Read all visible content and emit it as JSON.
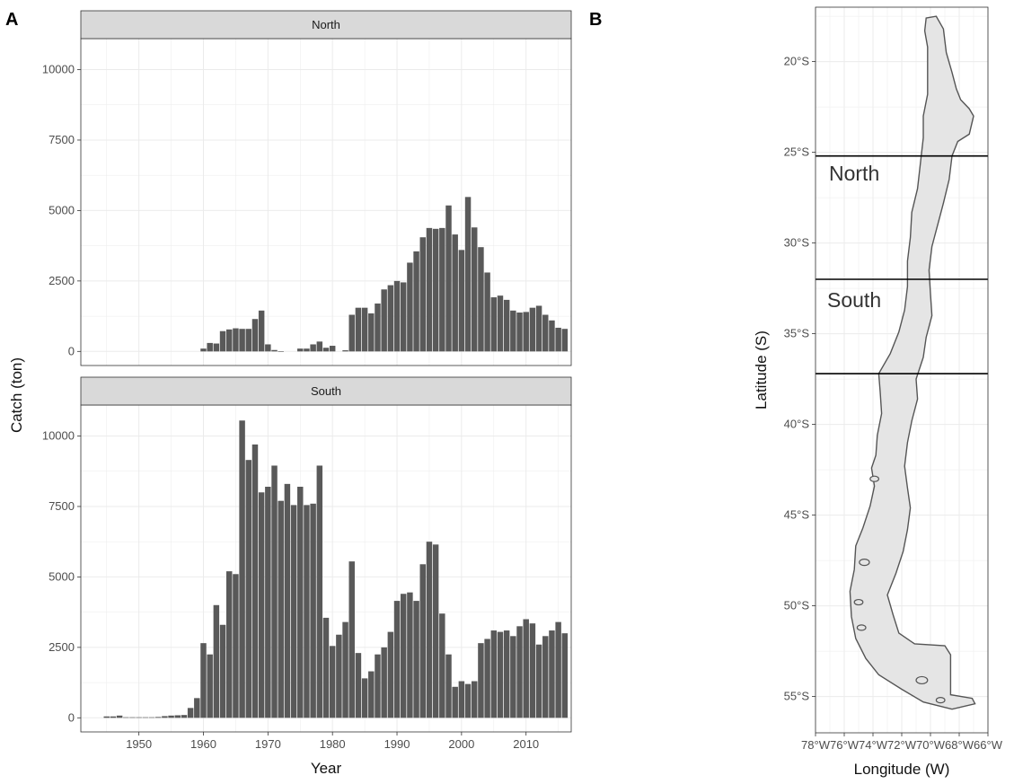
{
  "panels": {
    "a_label": "A",
    "b_label": "B"
  },
  "chart_data": [
    {
      "type": "bar",
      "facet_strips": [
        "North",
        "South"
      ],
      "xlabel": "Year",
      "ylabel": "Catch (ton)",
      "xlim": [
        1941,
        2017
      ],
      "ylim": [
        -500,
        11100
      ],
      "xticks": [
        1950,
        1960,
        1970,
        1980,
        1990,
        2000,
        2010
      ],
      "yticks": [
        0,
        2500,
        5000,
        7500,
        10000
      ],
      "grid": true,
      "bar_color": "#595959",
      "series": [
        {
          "name": "North",
          "x": [
            1960,
            1961,
            1962,
            1963,
            1964,
            1965,
            1966,
            1967,
            1968,
            1969,
            1970,
            1971,
            1972,
            1975,
            1976,
            1977,
            1978,
            1979,
            1980,
            1982,
            1983,
            1984,
            1985,
            1986,
            1987,
            1988,
            1989,
            1990,
            1991,
            1992,
            1993,
            1994,
            1995,
            1996,
            1997,
            1998,
            1999,
            2000,
            2001,
            2002,
            2003,
            2004,
            2005,
            2006,
            2007,
            2008,
            2009,
            2010,
            2011,
            2012,
            2013,
            2014,
            2015,
            2016
          ],
          "values": [
            100,
            300,
            280,
            720,
            780,
            820,
            800,
            800,
            1150,
            1450,
            250,
            50,
            0,
            100,
            100,
            250,
            350,
            130,
            200,
            40,
            1300,
            1550,
            1550,
            1350,
            1700,
            2200,
            2350,
            2500,
            2450,
            3150,
            3550,
            4050,
            4380,
            4350,
            4380,
            5180,
            4150,
            3600,
            5480,
            4400,
            3700,
            2800,
            1920,
            1980,
            1830,
            1450,
            1380,
            1400,
            1550,
            1620,
            1300,
            1100,
            840,
            800
          ]
        },
        {
          "name": "South",
          "x": [
            1945,
            1946,
            1947,
            1948,
            1949,
            1950,
            1951,
            1952,
            1953,
            1954,
            1955,
            1956,
            1957,
            1958,
            1959,
            1960,
            1961,
            1962,
            1963,
            1964,
            1965,
            1966,
            1967,
            1968,
            1969,
            1970,
            1971,
            1972,
            1973,
            1974,
            1975,
            1976,
            1977,
            1978,
            1979,
            1980,
            1981,
            1982,
            1983,
            1984,
            1985,
            1986,
            1987,
            1988,
            1989,
            1990,
            1991,
            1992,
            1993,
            1994,
            1995,
            1996,
            1997,
            1998,
            1999,
            2000,
            2001,
            2002,
            2003,
            2004,
            2005,
            2006,
            2007,
            2008,
            2009,
            2010,
            2011,
            2012,
            2013,
            2014,
            2015,
            2016
          ],
          "values": [
            50,
            50,
            80,
            20,
            20,
            20,
            20,
            20,
            30,
            60,
            80,
            90,
            100,
            350,
            700,
            2650,
            2250,
            4000,
            3300,
            5200,
            5100,
            10550,
            9150,
            9700,
            8000,
            8200,
            8950,
            7700,
            8300,
            7550,
            8200,
            7550,
            7600,
            8950,
            3550,
            2550,
            2950,
            3400,
            5550,
            2300,
            1400,
            1650,
            2250,
            2500,
            3050,
            4150,
            4400,
            4450,
            4150,
            5450,
            6250,
            6150,
            3700,
            2250,
            1100,
            1300,
            1200,
            1300,
            2650,
            2800,
            3100,
            3050,
            3100,
            2900,
            3250,
            3500,
            3350,
            2600,
            2900,
            3100,
            3400,
            3000
          ]
        }
      ]
    },
    {
      "type": "map",
      "xlabel": "Longitude (W)",
      "ylabel": "Latitude (S)",
      "xlim": [
        -78,
        -66
      ],
      "ylim": [
        -57,
        -17
      ],
      "xticks": [
        "78°W",
        "76°W",
        "74°W",
        "72°W",
        "70°W",
        "68°W",
        "66°W"
      ],
      "yticks": [
        "20°S",
        "25°S",
        "30°S",
        "35°S",
        "40°S",
        "45°S",
        "50°S",
        "55°S"
      ],
      "ytick_values": [
        -20,
        -25,
        -30,
        -35,
        -40,
        -45,
        -50,
        -55
      ],
      "xtick_values": [
        -78,
        -76,
        -74,
        -72,
        -70,
        -68,
        -66
      ],
      "boundaries_lat": [
        -25.2,
        -32.0,
        -37.2
      ],
      "regions": [
        "North",
        "South"
      ],
      "land_color": "#e5e5e5",
      "outline_color": "#555555"
    }
  ]
}
